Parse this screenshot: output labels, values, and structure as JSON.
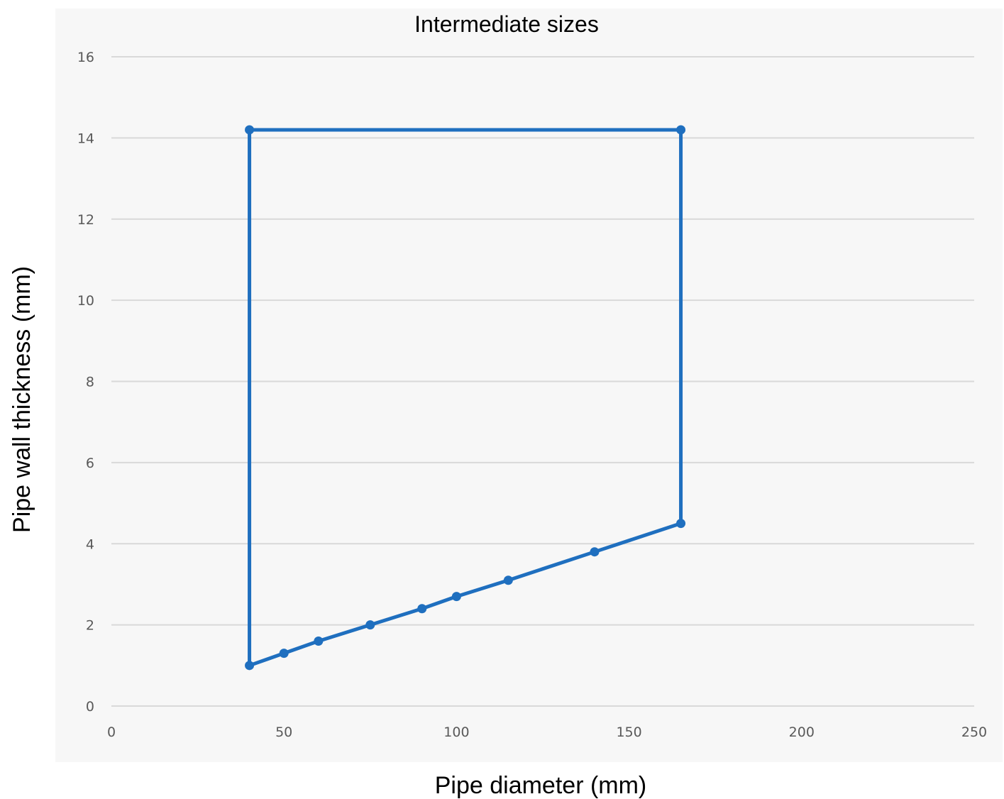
{
  "chart_data": {
    "type": "line",
    "title": "Intermediate sizes",
    "xlabel": "Pipe diameter (mm)",
    "ylabel": "Pipe wall thickness (mm)",
    "xlim": [
      0,
      250
    ],
    "ylim": [
      0,
      16
    ],
    "xticks": [
      "0",
      "50",
      "100",
      "150",
      "200",
      "250"
    ],
    "yticks": [
      "0",
      "2",
      "4",
      "6",
      "8",
      "10",
      "12",
      "14",
      "16"
    ],
    "grid": "horizontal",
    "series": [
      {
        "color": "#1f6fbf",
        "points": [
          {
            "x": 40,
            "y": 1.0
          },
          {
            "x": 40,
            "y": 14.2
          },
          {
            "x": 165,
            "y": 14.2
          },
          {
            "x": 165,
            "y": 4.5
          },
          {
            "x": 140,
            "y": 3.8
          },
          {
            "x": 115,
            "y": 3.1
          },
          {
            "x": 100,
            "y": 2.7
          },
          {
            "x": 90,
            "y": 2.4
          },
          {
            "x": 75,
            "y": 2.0
          },
          {
            "x": 60,
            "y": 1.6
          },
          {
            "x": 50,
            "y": 1.3
          },
          {
            "x": 40,
            "y": 1.0
          }
        ]
      }
    ]
  }
}
